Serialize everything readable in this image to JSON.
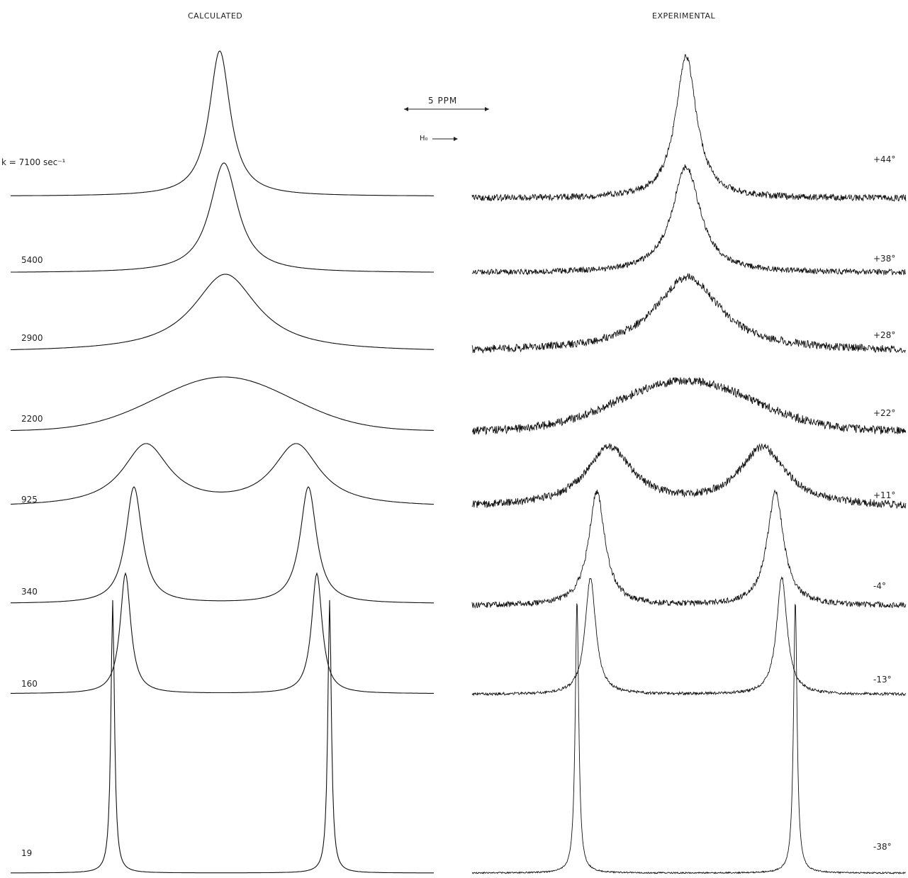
{
  "headers": {
    "calculated": "CALCULATED",
    "experimental": "EXPERIMENTAL"
  },
  "scale": {
    "label": "5 PPM",
    "field_label": "H₀"
  },
  "calculated_spectra": [
    {
      "label": "k = 7100 sec⁻¹",
      "k": 7100,
      "shape": "single",
      "width": 18
    },
    {
      "label": "5400",
      "k": 5400,
      "shape": "single",
      "width": 24
    },
    {
      "label": "2900",
      "k": 2900,
      "shape": "single",
      "width": 55
    },
    {
      "label": "2200",
      "k": 2200,
      "shape": "broad",
      "width": 95
    },
    {
      "label": "925",
      "k": 925,
      "shape": "double",
      "width": 40
    },
    {
      "label": "340",
      "k": 340,
      "shape": "double",
      "width": 14
    },
    {
      "label": "160",
      "k": 160,
      "shape": "double",
      "width": 9
    },
    {
      "label": "19",
      "k": 19,
      "shape": "double",
      "width": 3
    }
  ],
  "experimental_spectra": [
    {
      "label": "+44°",
      "temperature": 44
    },
    {
      "label": "+38°",
      "temperature": 38
    },
    {
      "label": "+28°",
      "temperature": 28
    },
    {
      "label": "+22°",
      "temperature": 22
    },
    {
      "label": "+11°",
      "temperature": 11
    },
    {
      "label": "-4°",
      "temperature": -4
    },
    {
      "label": "-13°",
      "temperature": -13
    },
    {
      "label": "-38°",
      "temperature": -38
    }
  ]
}
